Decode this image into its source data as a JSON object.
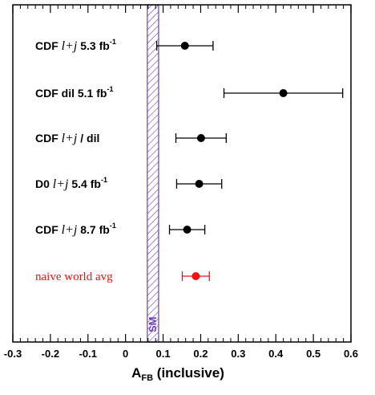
{
  "chart_data": {
    "type": "scatter",
    "title": "",
    "xlabel": "A",
    "xlabel_sub": "FB",
    "xlabel_suffix": " (inclusive)",
    "ylabel": "",
    "xlim": [
      -0.3,
      0.6
    ],
    "xticks": [
      "-0.3",
      "-0.2",
      "-0.1",
      "0",
      "0.1",
      "0.2",
      "0.3",
      "0.4",
      "0.5",
      "0.6"
    ],
    "xtick_values": [
      -0.3,
      -0.2,
      -0.1,
      0,
      0.1,
      0.2,
      0.3,
      0.4,
      0.5,
      0.6
    ],
    "grid": false,
    "band": {
      "label": "SM",
      "from": 0.058,
      "to": 0.088,
      "color": "#6a3cc0"
    },
    "points": [
      {
        "label_main": "CDF ",
        "label_italic": "l+j",
        "label_rest": " 5.3 fb",
        "label_sup": "-1",
        "value": 0.158,
        "err_low": 0.075,
        "err_high": 0.075,
        "color": "#000000"
      },
      {
        "label_main": "CDF dil 5.1 fb",
        "label_italic": "",
        "label_rest": "",
        "label_sup": "-1",
        "value": 0.42,
        "err_low": 0.158,
        "err_high": 0.158,
        "color": "#000000"
      },
      {
        "label_main": "CDF ",
        "label_italic": "l+j",
        "label_rest": " / dil",
        "label_sup": "",
        "value": 0.201,
        "err_low": 0.067,
        "err_high": 0.067,
        "color": "#000000"
      },
      {
        "label_main": "D0 ",
        "label_italic": "l+j",
        "label_rest": " 5.4 fb",
        "label_sup": "-1",
        "value": 0.196,
        "err_low": 0.06,
        "err_high": 0.06,
        "color": "#000000"
      },
      {
        "label_main": "CDF ",
        "label_italic": "l+j",
        "label_rest": " 8.7 fb",
        "label_sup": "-1",
        "value": 0.164,
        "err_low": 0.047,
        "err_high": 0.047,
        "color": "#000000"
      },
      {
        "label_main": "naive world avg",
        "label_italic": "",
        "label_rest": "",
        "label_sup": "",
        "value": 0.187,
        "err_low": 0.036,
        "err_high": 0.036,
        "color": "#ee1111"
      }
    ]
  }
}
